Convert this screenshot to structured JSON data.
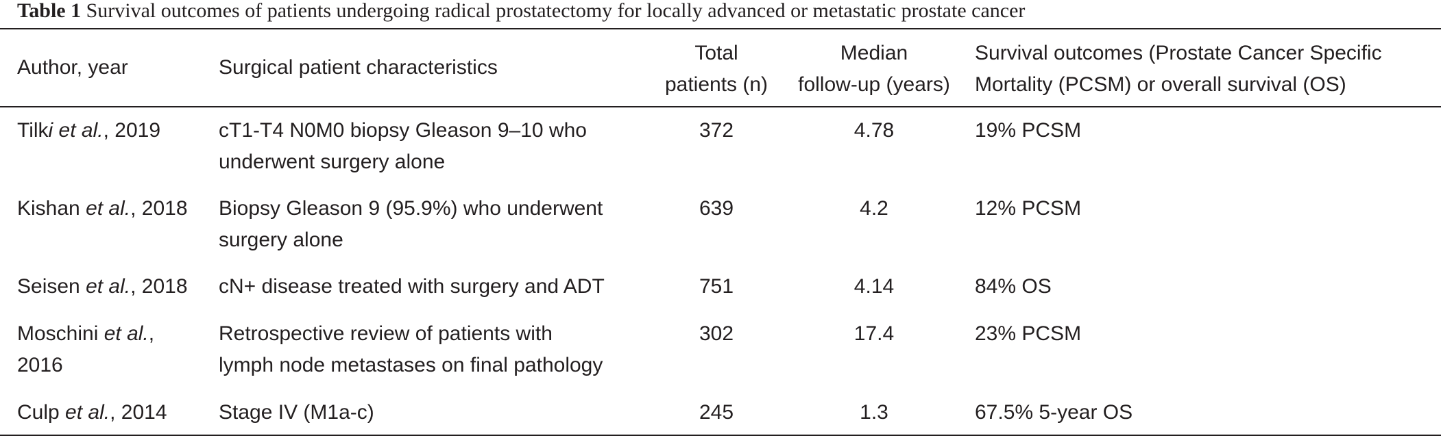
{
  "caption": {
    "label": "Table 1",
    "text": "Survival outcomes of patients undergoing radical prostatectomy for locally advanced or metastatic prostate cancer"
  },
  "headers": {
    "author": "Author, year",
    "characteristics": "Surgical patient characteristics",
    "total_line1": "Total",
    "total_line2": "patients (n)",
    "median_line1": "Median",
    "median_line2": "follow-up (years)",
    "survival_line1": "Survival outcomes (Prostate Cancer Specific",
    "survival_line2": "Mortality (PCSM) or overall survival (OS)"
  },
  "rows": [
    {
      "author_pre": "Tilk",
      "author_it": "i et al.",
      "author_post": ", 2019",
      "char_line1": "cT1-T4 N0M0 biopsy Gleason 9–10 who",
      "char_line2": "underwent surgery alone",
      "total": "372",
      "median": "4.78",
      "survival": "19% PCSM"
    },
    {
      "author_pre": "Kishan ",
      "author_it": "et al.",
      "author_post": ", 2018",
      "char_line1": "Biopsy Gleason 9 (95.9%) who underwent",
      "char_line2": "surgery alone",
      "total": "639",
      "median": "4.2",
      "survival": "12% PCSM"
    },
    {
      "author_pre": "Seisen ",
      "author_it": "et al.",
      "author_post": ", 2018",
      "char_line1": "cN+ disease treated with surgery and ADT",
      "total": "751",
      "median": "4.14",
      "survival": "84% OS"
    },
    {
      "author_pre": "Moschini ",
      "author_it": "et al.",
      "author_post": ",",
      "author_line2": "2016",
      "char_line1": "Retrospective review of patients with",
      "char_line2": "lymph node metastases on final pathology",
      "total": "302",
      "median": "17.4",
      "survival": "23% PCSM"
    },
    {
      "author_pre": "Culp ",
      "author_it": "et al.",
      "author_post": ", 2014",
      "char_line1": "Stage IV (M1a-c)",
      "total": "245",
      "median": "1.3",
      "survival": "67.5% 5-year OS"
    }
  ]
}
